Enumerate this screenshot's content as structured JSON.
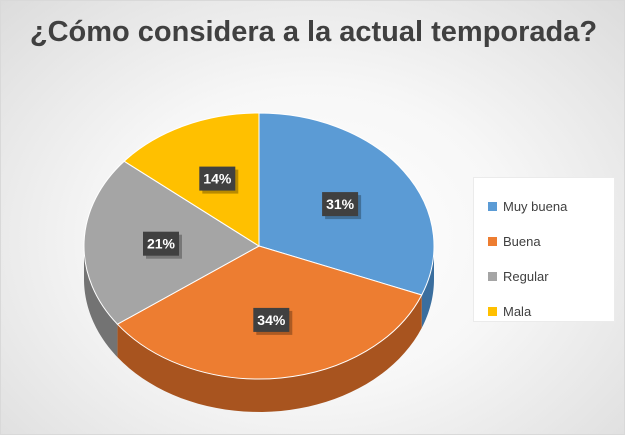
{
  "chart_data": {
    "type": "pie",
    "title": "¿Cómo considera a la actual temporada?",
    "categories": [
      "Muy buena",
      "Buena",
      "Regular",
      "Mala"
    ],
    "values": [
      31,
      34,
      21,
      14
    ],
    "value_labels": [
      "31%",
      "34%",
      "21%",
      "14%"
    ],
    "colors": [
      "#5B9BD5",
      "#ED7D31",
      "#A5A5A5",
      "#FFC000"
    ],
    "side_colors": [
      "#3A6E9E",
      "#A8541F",
      "#737373",
      "#B38600"
    ],
    "legend_position": "right",
    "style": "3d"
  }
}
